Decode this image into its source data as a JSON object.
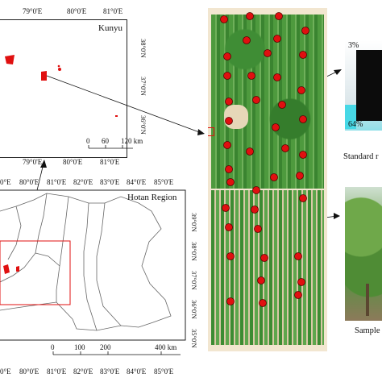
{
  "kunyu_map": {
    "title": "Kunyu",
    "lon_labels": [
      "79°0'E",
      "80°0'E",
      "81°0'E"
    ],
    "bottom_lon_labels": [
      "79°0'E",
      "80°0'E",
      "81°0'E"
    ],
    "lat_labels": [
      "38°0'N",
      "37°0'N",
      "36°0'N"
    ],
    "scale": {
      "ticks": [
        "0",
        "60",
        "120 km"
      ]
    }
  },
  "hotan_map": {
    "title": "Hotan Region",
    "top_lon_labels": [
      "0°E",
      "80°0'E",
      "81°0'E",
      "82°0'E",
      "83°0'E",
      "84°0'E",
      "85°0'E"
    ],
    "bottom_lon_labels": [
      "0°E",
      "80°0'E",
      "81°0'E",
      "82°0'E",
      "83°0'E",
      "84°0'E",
      "85°0'E"
    ],
    "lat_labels": [
      "39°0'N",
      "38°0'N",
      "37°0'N",
      "36°0'N",
      "35°0'N"
    ],
    "scale": {
      "ticks": [
        "0",
        "100",
        "200",
        "400 km"
      ]
    }
  },
  "field": {
    "sample_point_color": "#e01010"
  },
  "standard": {
    "labels": {
      "top": "3%",
      "bottom": "64%"
    },
    "caption": "Standard r"
  },
  "sample": {
    "caption": "Sample"
  },
  "colors": {
    "region_red": "#e01010",
    "frame": "#222222",
    "boundary": "#555555"
  }
}
